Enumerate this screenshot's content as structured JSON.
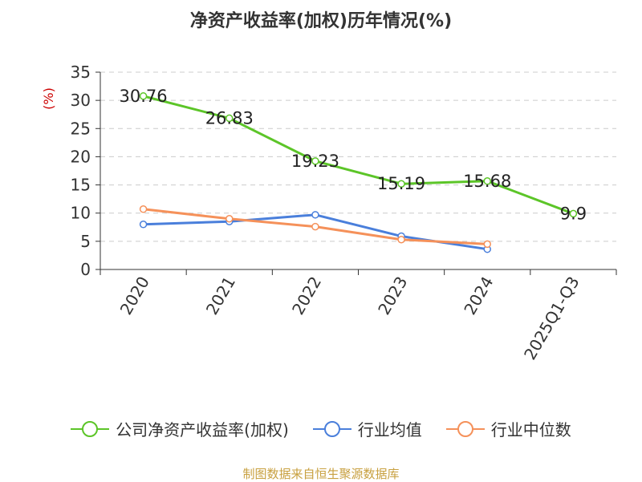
{
  "chart_data": {
    "type": "line",
    "title": "净资产收益率(加权)历年情况(%)",
    "ylabel": "(%)",
    "ylim": [
      0,
      35
    ],
    "yticks": [
      "0",
      "5",
      "10",
      "15",
      "20",
      "25",
      "30",
      "35"
    ],
    "categories": [
      "2020",
      "2021",
      "2022",
      "2023",
      "2024",
      "2025Q1-Q3"
    ],
    "grid": true,
    "legend_position": "bottom",
    "series": [
      {
        "name": "公司净资产收益率(加权)",
        "color": "#5cc528",
        "values": [
          30.76,
          26.83,
          19.23,
          15.19,
          15.68,
          9.9
        ],
        "labels": [
          "30.76",
          "26.83",
          "19.23",
          "15.19",
          "15.68",
          "9.9"
        ]
      },
      {
        "name": "行业均值",
        "color": "#4a7fdb",
        "values": [
          8.0,
          8.5,
          9.7,
          5.9,
          3.6,
          null
        ]
      },
      {
        "name": "行业中位数",
        "color": "#f5915a",
        "values": [
          10.7,
          9.0,
          7.6,
          5.3,
          4.5,
          null
        ]
      }
    ]
  },
  "source_text": "制图数据来自恒生聚源数据库"
}
